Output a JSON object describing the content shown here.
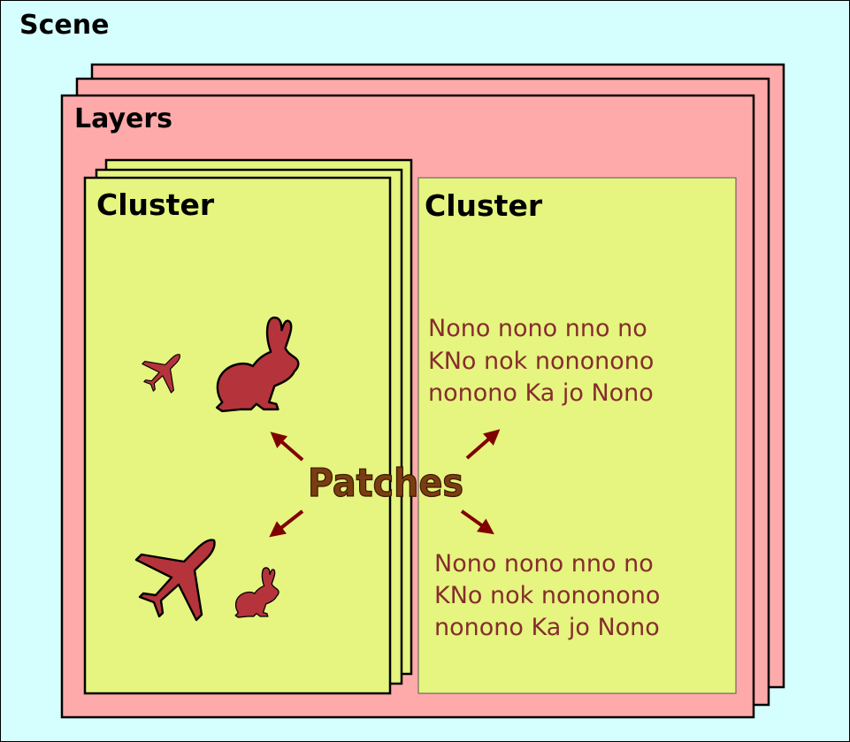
{
  "scene": {
    "title": "Scene"
  },
  "layers": {
    "title": "Layers"
  },
  "clusters": [
    {
      "title": "Cluster"
    },
    {
      "title": "Cluster"
    }
  ],
  "patches": {
    "label": "Patches"
  },
  "text_patches": [
    {
      "lines": [
        "Nono nono nno no",
        "KNo nok nononono",
        "nonono Ka jo Nono"
      ]
    },
    {
      "lines": [
        "Nono nono nno no",
        "KNo nok nononono",
        "nonono Ka jo Nono"
      ]
    }
  ],
  "icons": [
    "airplane-icon",
    "rabbit-icon",
    "airplane-icon",
    "rabbit-icon"
  ],
  "colors": {
    "scene_bg": "#d5ffff",
    "layer_bg": "#ffaaaa",
    "cluster_bg": "#e5f57f",
    "icon": "#b5333a",
    "arrow": "#800000",
    "text": "#862d2d"
  }
}
